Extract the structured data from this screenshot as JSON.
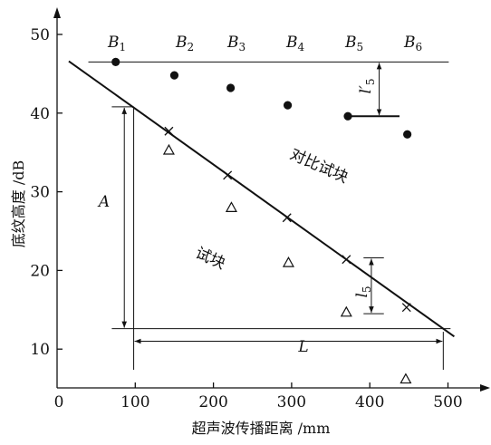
{
  "axes": {
    "x_title": "超声波传播距离 /mm",
    "y_title": "底纹高度 /dB",
    "x_ticks": [
      {
        "value": 0,
        "label": "0"
      },
      {
        "value": 100,
        "label": "100"
      },
      {
        "value": 200,
        "label": "200"
      },
      {
        "value": 300,
        "label": "300"
      },
      {
        "value": 400,
        "label": "400"
      },
      {
        "value": 500,
        "label": "500"
      }
    ],
    "y_ticks": [
      {
        "value": 10,
        "label": "10"
      },
      {
        "value": 20,
        "label": "20"
      },
      {
        "value": 30,
        "label": "30"
      },
      {
        "value": 40,
        "label": "40"
      },
      {
        "value": 50,
        "label": "50"
      }
    ]
  },
  "reference_level_db": 46.5,
  "b_points": [
    {
      "main": "B",
      "sub": "1",
      "x": 75,
      "y": 46.5
    },
    {
      "main": "B",
      "sub": "2",
      "x": 150,
      "y": 44.8
    },
    {
      "main": "B",
      "sub": "3",
      "x": 222,
      "y": 43.2
    },
    {
      "main": "B",
      "sub": "4",
      "x": 295,
      "y": 41.0
    },
    {
      "main": "B",
      "sub": "5",
      "x": 372,
      "y": 39.6
    },
    {
      "main": "B",
      "sub": "6",
      "x": 448,
      "y": 37.3
    }
  ],
  "cross_points": [
    {
      "x": 143,
      "y": 37.7
    },
    {
      "x": 218,
      "y": 32.1
    },
    {
      "x": 294,
      "y": 26.7
    },
    {
      "x": 370,
      "y": 21.4
    },
    {
      "x": 447,
      "y": 15.3
    }
  ],
  "triangle_points": [
    {
      "x": 143,
      "y": 35.3
    },
    {
      "x": 223,
      "y": 28.0
    },
    {
      "x": 296,
      "y": 21.0
    },
    {
      "x": 370,
      "y": 14.7
    },
    {
      "x": 446,
      "y": 6.2
    }
  ],
  "trend_line": {
    "start": [
      15,
      46.6
    ],
    "end": [
      508,
      11.6
    ]
  },
  "dimensions": {
    "A": {
      "label": "A",
      "top_db": 40.8,
      "bottom_db": 12.6,
      "x_mm": 86
    },
    "L": {
      "label": "L",
      "from_mm": 98,
      "to_mm": 494,
      "y_db": 11.0
    },
    "l5": {
      "label": "l",
      "sub": "5",
      "top_db": 21.6,
      "bottom_db": 14.5,
      "x_mm": 402
    },
    "l5_prime": {
      "label": "l",
      "sub": "5",
      "prime": "′",
      "top_db": 46.5,
      "bottom_db": 39.6,
      "x_mm": 412
    }
  },
  "regions": {
    "upper": "对比试块",
    "lower": "试块"
  }
}
